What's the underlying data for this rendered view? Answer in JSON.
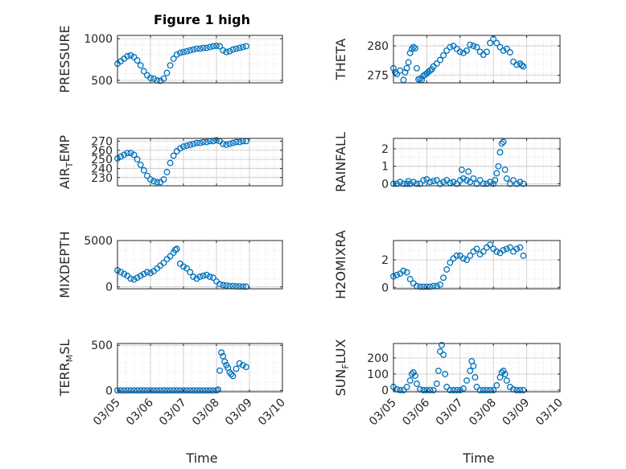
{
  "figure": {
    "title": "Figure 1 high",
    "xlabel": "Time"
  },
  "colors": {
    "marker": "#0072BD",
    "axis": "#262626",
    "grid": "#d0d0d0"
  },
  "chart_data": [
    {
      "type": "scatter",
      "ylabel": "PRESSURE",
      "ylabel_sub": "",
      "ylabel_suffix": "",
      "ylim": [
        470,
        1040
      ],
      "yticks": [
        500,
        1000
      ],
      "yticklabels": [
        "500",
        "1000"
      ],
      "xlim": [
        0,
        5
      ],
      "xticks": [
        0,
        1,
        2,
        3,
        4,
        5
      ],
      "xticklabels": [
        "03/05",
        "03/06",
        "03/07",
        "03/08",
        "03/09",
        "03/10"
      ],
      "show_xticklabels": false,
      "grid": true,
      "x": [
        0,
        0.1,
        0.2,
        0.3,
        0.4,
        0.5,
        0.6,
        0.7,
        0.8,
        0.9,
        1.0,
        1.1,
        1.2,
        1.3,
        1.4,
        1.5,
        1.6,
        1.7,
        1.8,
        1.9,
        2.0,
        2.1,
        2.2,
        2.3,
        2.4,
        2.5,
        2.6,
        2.7,
        2.8,
        2.9,
        3.0,
        3.1,
        3.2,
        3.3,
        3.4,
        3.5,
        3.6,
        3.7,
        3.8,
        3.9
      ],
      "y": [
        700,
        730,
        760,
        790,
        800,
        780,
        740,
        680,
        610,
        560,
        530,
        520,
        500,
        495,
        520,
        590,
        680,
        760,
        810,
        830,
        840,
        850,
        860,
        870,
        880,
        880,
        890,
        890,
        900,
        910,
        915,
        910,
        860,
        840,
        850,
        870,
        880,
        890,
        900,
        910
      ]
    },
    {
      "type": "scatter",
      "ylabel": "THETA",
      "ylabel_sub": "",
      "ylabel_suffix": "",
      "ylim": [
        273.7,
        281.8
      ],
      "yticks": [
        275,
        280
      ],
      "yticklabels": [
        "275",
        "280"
      ],
      "xlim": [
        0,
        5
      ],
      "xticks": [
        0,
        1,
        2,
        3,
        4,
        5
      ],
      "xticklabels": [
        "03/05",
        "03/06",
        "03/07",
        "03/08",
        "03/09",
        "03/10"
      ],
      "show_xticklabels": false,
      "grid": true,
      "x": [
        0,
        0.05,
        0.1,
        0.2,
        0.3,
        0.35,
        0.4,
        0.45,
        0.5,
        0.55,
        0.6,
        0.65,
        0.7,
        0.75,
        0.8,
        0.85,
        0.9,
        0.95,
        1.0,
        1.05,
        1.1,
        1.15,
        1.2,
        1.3,
        1.4,
        1.5,
        1.6,
        1.7,
        1.8,
        1.9,
        2.0,
        2.1,
        2.2,
        2.3,
        2.4,
        2.5,
        2.6,
        2.7,
        2.8,
        2.9,
        3.0,
        3.1,
        3.2,
        3.3,
        3.4,
        3.5,
        3.6,
        3.7,
        3.8,
        3.85,
        3.9
      ],
      "y": [
        276.2,
        275.5,
        275.2,
        275.8,
        274.2,
        275.5,
        276.2,
        277.2,
        278.8,
        279.5,
        279.8,
        279.6,
        276.2,
        274.3,
        274.4,
        274.2,
        274.9,
        275.1,
        275.3,
        275.6,
        275.8,
        276.0,
        276.5,
        277.0,
        277.6,
        278.4,
        279.2,
        279.8,
        280.0,
        279.5,
        279.0,
        278.8,
        279.2,
        280.2,
        280.0,
        279.8,
        279.0,
        278.5,
        279.0,
        280.5,
        281.2,
        280.5,
        279.8,
        279.2,
        279.5,
        278.9,
        277.3,
        276.8,
        277.0,
        276.7,
        276.5
      ]
    },
    {
      "type": "scatter",
      "ylabel": "AIR",
      "ylabel_sub": "T",
      "ylabel_suffix": "EMP",
      "ylim": [
        221,
        273
      ],
      "yticks": [
        230,
        240,
        250,
        260,
        270
      ],
      "yticklabels": [
        "230",
        "240",
        "250",
        "260",
        "270"
      ],
      "xlim": [
        0,
        5
      ],
      "xticks": [
        0,
        1,
        2,
        3,
        4,
        5
      ],
      "xticklabels": [
        "03/05",
        "03/06",
        "03/07",
        "03/08",
        "03/09",
        "03/10"
      ],
      "show_xticklabels": false,
      "grid": true,
      "x": [
        0,
        0.1,
        0.2,
        0.3,
        0.4,
        0.5,
        0.6,
        0.7,
        0.8,
        0.9,
        1.0,
        1.1,
        1.2,
        1.3,
        1.4,
        1.5,
        1.6,
        1.7,
        1.8,
        1.9,
        2.0,
        2.1,
        2.2,
        2.3,
        2.4,
        2.5,
        2.6,
        2.7,
        2.8,
        2.9,
        3.0,
        3.1,
        3.2,
        3.3,
        3.4,
        3.5,
        3.6,
        3.7,
        3.8,
        3.9
      ],
      "y": [
        251,
        253,
        255,
        257,
        257,
        255,
        250,
        244,
        238,
        232,
        228,
        226,
        225,
        225,
        228,
        236,
        246,
        254,
        259,
        262,
        264,
        265,
        266,
        267,
        268,
        268,
        269,
        269,
        270,
        270,
        271,
        270,
        267,
        266,
        267,
        268,
        269,
        269,
        270,
        270
      ]
    },
    {
      "type": "scatter",
      "ylabel": "RAINFALL",
      "ylabel_sub": "",
      "ylabel_suffix": "",
      "ylim": [
        -0.12,
        2.6
      ],
      "yticks": [
        0,
        1,
        2
      ],
      "yticklabels": [
        "0",
        "1",
        "2"
      ],
      "xlim": [
        0,
        5
      ],
      "xticks": [
        0,
        1,
        2,
        3,
        4,
        5
      ],
      "xticklabels": [
        "03/05",
        "03/06",
        "03/07",
        "03/08",
        "03/09",
        "03/10"
      ],
      "show_xticklabels": false,
      "grid": true,
      "x": [
        0,
        0.1,
        0.2,
        0.3,
        0.4,
        0.45,
        0.5,
        0.6,
        0.7,
        0.8,
        0.9,
        1.0,
        1.1,
        1.2,
        1.3,
        1.4,
        1.5,
        1.6,
        1.7,
        1.8,
        1.9,
        2.0,
        2.05,
        2.1,
        2.2,
        2.25,
        2.3,
        2.4,
        2.5,
        2.6,
        2.7,
        2.8,
        2.9,
        3.0,
        3.05,
        3.1,
        3.15,
        3.2,
        3.25,
        3.3,
        3.35,
        3.4,
        3.5,
        3.6,
        3.7,
        3.8,
        3.9
      ],
      "y": [
        0,
        0,
        0.1,
        0,
        0,
        0.15,
        0,
        0.1,
        0,
        0,
        0.2,
        0.25,
        0.1,
        0.15,
        0.2,
        0,
        0.1,
        0.2,
        0.05,
        0.1,
        0,
        0.2,
        0.8,
        0.3,
        0.2,
        0.7,
        0.1,
        0.3,
        0,
        0.2,
        0,
        0,
        0.1,
        0,
        0.2,
        0.6,
        1.0,
        1.8,
        2.3,
        2.4,
        0.8,
        0.3,
        0,
        0.2,
        0,
        0.1,
        0
      ]
    },
    {
      "type": "scatter",
      "ylabel": "MIXDEPTH",
      "ylabel_sub": "",
      "ylabel_suffix": "",
      "ylim": [
        -200,
        5000
      ],
      "yticks": [
        0,
        5000
      ],
      "yticklabels": [
        "0",
        "5000"
      ],
      "xlim": [
        0,
        5
      ],
      "xticks": [
        0,
        1,
        2,
        3,
        4,
        5
      ],
      "xticklabels": [
        "03/05",
        "03/06",
        "03/07",
        "03/08",
        "03/09",
        "03/10"
      ],
      "show_xticklabels": false,
      "grid": true,
      "x": [
        0,
        0.1,
        0.2,
        0.3,
        0.4,
        0.5,
        0.6,
        0.7,
        0.8,
        0.9,
        1.0,
        1.1,
        1.2,
        1.3,
        1.4,
        1.5,
        1.6,
        1.7,
        1.75,
        1.8,
        1.9,
        2.0,
        2.1,
        2.2,
        2.3,
        2.4,
        2.5,
        2.6,
        2.7,
        2.8,
        2.9,
        3.0,
        3.1,
        3.2,
        3.3,
        3.4,
        3.5,
        3.6,
        3.7,
        3.8,
        3.9
      ],
      "y": [
        1800,
        1600,
        1400,
        1200,
        900,
        800,
        1000,
        1200,
        1400,
        1600,
        1500,
        1700,
        2000,
        2300,
        2600,
        3000,
        3300,
        3700,
        4000,
        4100,
        2500,
        2200,
        2000,
        1600,
        1100,
        900,
        1100,
        1200,
        1300,
        1100,
        1000,
        600,
        300,
        200,
        150,
        100,
        100,
        50,
        50,
        40,
        30
      ]
    },
    {
      "type": "scatter",
      "ylabel": "H2OMIXRA",
      "ylabel_sub": "",
      "ylabel_suffix": "",
      "ylim": [
        -0.1,
        3.4
      ],
      "yticks": [
        0,
        2
      ],
      "yticklabels": [
        "0",
        "2"
      ],
      "xlim": [
        0,
        5
      ],
      "xticks": [
        0,
        1,
        2,
        3,
        4,
        5
      ],
      "xticklabels": [
        "03/05",
        "03/06",
        "03/07",
        "03/08",
        "03/09",
        "03/10"
      ],
      "show_xticklabels": false,
      "grid": true,
      "x": [
        0,
        0.1,
        0.2,
        0.3,
        0.4,
        0.5,
        0.6,
        0.7,
        0.8,
        0.9,
        1.0,
        1.1,
        1.2,
        1.3,
        1.4,
        1.5,
        1.6,
        1.7,
        1.8,
        1.9,
        2.0,
        2.1,
        2.2,
        2.3,
        2.4,
        2.5,
        2.6,
        2.7,
        2.8,
        2.9,
        3.0,
        3.1,
        3.2,
        3.3,
        3.4,
        3.5,
        3.6,
        3.7,
        3.8,
        3.9
      ],
      "y": [
        0.8,
        0.9,
        1.0,
        1.2,
        1.1,
        0.6,
        0.3,
        0.1,
        0.05,
        0.05,
        0.05,
        0.05,
        0.1,
        0.1,
        0.2,
        0.7,
        1.3,
        1.8,
        2.1,
        2.3,
        2.3,
        2.1,
        2.0,
        2.3,
        2.6,
        2.8,
        2.4,
        2.6,
        2.9,
        3.1,
        2.8,
        2.6,
        2.5,
        2.7,
        2.8,
        2.9,
        2.6,
        2.8,
        2.9,
        2.3
      ]
    },
    {
      "type": "scatter",
      "ylabel": "TERR",
      "ylabel_sub": "M",
      "ylabel_suffix": "SL",
      "ylim": [
        -15,
        520
      ],
      "yticks": [
        0,
        500
      ],
      "yticklabels": [
        "0",
        "500"
      ],
      "xlim": [
        0,
        5
      ],
      "xticks": [
        0,
        1,
        2,
        3,
        4,
        5
      ],
      "xticklabels": [
        "03/05",
        "03/06",
        "03/07",
        "03/08",
        "03/09",
        "03/10"
      ],
      "show_xticklabels": true,
      "grid": true,
      "x": [
        0,
        0.1,
        0.2,
        0.3,
        0.4,
        0.5,
        0.6,
        0.7,
        0.8,
        0.9,
        1.0,
        1.1,
        1.2,
        1.3,
        1.4,
        1.5,
        1.6,
        1.7,
        1.8,
        1.9,
        2.0,
        2.1,
        2.2,
        2.3,
        2.4,
        2.5,
        2.6,
        2.7,
        2.8,
        2.9,
        3.0,
        3.05,
        3.1,
        3.15,
        3.2,
        3.25,
        3.3,
        3.35,
        3.4,
        3.45,
        3.5,
        3.6,
        3.7,
        3.8,
        3.9
      ],
      "y": [
        0,
        0,
        0,
        0,
        0,
        0,
        0,
        0,
        0,
        0,
        0,
        0,
        0,
        0,
        0,
        0,
        0,
        0,
        0,
        0,
        0,
        0,
        0,
        0,
        0,
        0,
        0,
        0,
        0,
        0,
        0,
        10,
        220,
        420,
        380,
        320,
        280,
        250,
        200,
        180,
        160,
        240,
        300,
        280,
        260
      ]
    },
    {
      "type": "scatter",
      "ylabel": "SUN",
      "ylabel_sub": "F",
      "ylabel_suffix": "LUX",
      "ylim": [
        -10,
        290
      ],
      "yticks": [
        0,
        100,
        200
      ],
      "yticklabels": [
        "0",
        "100",
        "200"
      ],
      "xlim": [
        0,
        5
      ],
      "xticks": [
        0,
        1,
        2,
        3,
        4,
        5
      ],
      "xticklabels": [
        "03/05",
        "03/06",
        "03/07",
        "03/08",
        "03/09",
        "03/10"
      ],
      "show_xticklabels": true,
      "grid": true,
      "x": [
        0,
        0.1,
        0.2,
        0.3,
        0.4,
        0.5,
        0.55,
        0.6,
        0.65,
        0.7,
        0.8,
        0.9,
        1.0,
        1.1,
        1.2,
        1.3,
        1.35,
        1.4,
        1.45,
        1.5,
        1.55,
        1.6,
        1.7,
        1.8,
        1.9,
        2.0,
        2.1,
        2.2,
        2.3,
        2.35,
        2.4,
        2.45,
        2.5,
        2.6,
        2.7,
        2.8,
        2.9,
        3.0,
        3.1,
        3.2,
        3.25,
        3.3,
        3.35,
        3.4,
        3.5,
        3.6,
        3.7,
        3.8,
        3.9
      ],
      "y": [
        20,
        5,
        0,
        0,
        20,
        60,
        100,
        110,
        90,
        40,
        5,
        0,
        0,
        0,
        0,
        40,
        120,
        240,
        280,
        220,
        100,
        20,
        0,
        0,
        0,
        0,
        10,
        60,
        120,
        180,
        150,
        80,
        20,
        0,
        0,
        0,
        0,
        0,
        30,
        80,
        110,
        120,
        100,
        60,
        20,
        5,
        0,
        0,
        0
      ]
    }
  ]
}
